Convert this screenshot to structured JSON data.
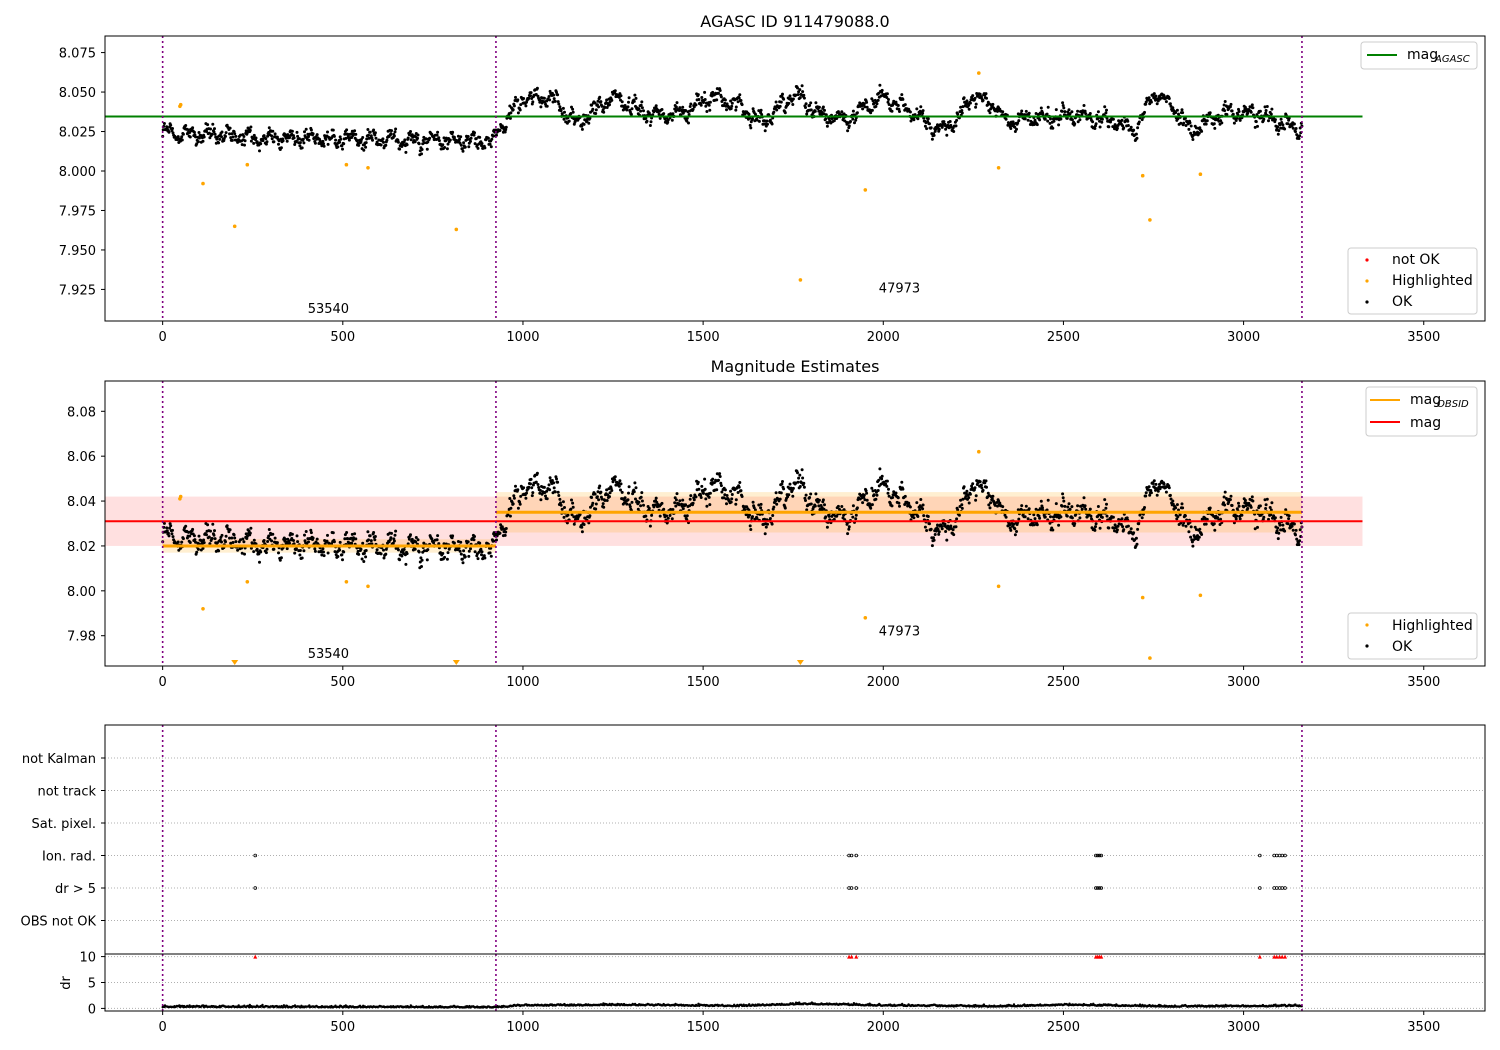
{
  "figure": {
    "title_top": "AGASC ID 911479088.0",
    "title_mid": "Magnitude Estimates"
  },
  "colors": {
    "ok": "#000000",
    "highlighted": "#ffa500",
    "not_ok": "#ff0000",
    "mag_agasc": "#008000",
    "mag_obsid": "#ffa500",
    "mag": "#ff0000",
    "obs_boundary": "#800080",
    "grid": "#b0b0b0"
  },
  "legends": {
    "top_line_label": "mag",
    "top_line_sub": "AGASC",
    "top_points": [
      "not OK",
      "Highlighted",
      "OK"
    ],
    "mid_line_labels": [
      {
        "label": "mag",
        "sub": "OBSID"
      },
      {
        "label": "mag",
        "sub": ""
      }
    ],
    "mid_points": [
      "Highlighted",
      "OK"
    ]
  },
  "chart_data": [
    {
      "type": "scatter",
      "title": "AGASC ID 911479088.0",
      "xlim": [
        -160,
        3670
      ],
      "ylim": [
        7.905,
        8.0855
      ],
      "x_ticks": [
        0,
        500,
        1000,
        1500,
        2000,
        2500,
        3000,
        3500
      ],
      "y_ticks": [
        7.925,
        7.95,
        7.975,
        8.0,
        8.025,
        8.05,
        8.075
      ],
      "y_tick_labels": [
        "7.925",
        "7.950",
        "7.975",
        "8.000",
        "8.025",
        "8.050",
        "8.075"
      ],
      "mag_agasc": 8.0345,
      "mag_agasc_x_range": [
        -160,
        3330
      ],
      "obs_boundaries": [
        0,
        925,
        3162
      ],
      "obsid_labels": [
        {
          "text": "53540",
          "x": 460,
          "y": 7.91
        },
        {
          "text": "47973",
          "x": 2045,
          "y": 7.923
        }
      ],
      "highlighted_points": [
        [
          48,
          8.041
        ],
        [
          50,
          8.042
        ],
        [
          112,
          7.992
        ],
        [
          200,
          7.965
        ],
        [
          235,
          8.004
        ],
        [
          510,
          8.004
        ],
        [
          570,
          8.002
        ],
        [
          815,
          7.963
        ],
        [
          1770,
          7.931
        ],
        [
          1950,
          7.988
        ],
        [
          2265,
          8.062
        ],
        [
          2320,
          8.002
        ],
        [
          2720,
          7.997
        ],
        [
          2740,
          7.969
        ],
        [
          2880,
          7.998
        ]
      ],
      "ok_segments": [
        {
          "x": [
            0,
            925
          ],
          "trend": [
            [
              0,
              8.024
            ],
            [
              300,
              8.021
            ],
            [
              600,
              8.02
            ],
            [
              925,
              8.019
            ]
          ],
          "scatter": 0.006
        },
        {
          "x": [
            925,
            3162
          ],
          "trend": [
            [
              925,
              8.024
            ],
            [
              1000,
              8.046
            ],
            [
              1080,
              8.046
            ],
            [
              1150,
              8.03
            ],
            [
              1250,
              8.047
            ],
            [
              1350,
              8.036
            ],
            [
              1420,
              8.035
            ],
            [
              1530,
              8.047
            ],
            [
              1600,
              8.042
            ],
            [
              1660,
              8.03
            ],
            [
              1760,
              8.05
            ],
            [
              1820,
              8.036
            ],
            [
              1900,
              8.033
            ],
            [
              2000,
              8.047
            ],
            [
              2060,
              8.04
            ],
            [
              2150,
              8.026
            ],
            [
              2200,
              8.03
            ],
            [
              2250,
              8.048
            ],
            [
              2310,
              8.042
            ],
            [
              2340,
              8.03
            ],
            [
              2420,
              8.034
            ],
            [
              2520,
              8.035
            ],
            [
              2640,
              8.032
            ],
            [
              2700,
              8.024
            ],
            [
              2750,
              8.05
            ],
            [
              2800,
              8.042
            ],
            [
              2850,
              8.025
            ],
            [
              2950,
              8.037
            ],
            [
              3050,
              8.036
            ],
            [
              3162,
              8.026
            ]
          ],
          "scatter": 0.006
        }
      ]
    },
    {
      "type": "scatter",
      "title": "Magnitude Estimates",
      "xlim": [
        -160,
        3670
      ],
      "ylim": [
        7.9665,
        8.0935
      ],
      "x_ticks": [
        0,
        500,
        1000,
        1500,
        2000,
        2500,
        3000,
        3500
      ],
      "y_ticks": [
        7.98,
        8.0,
        8.02,
        8.04,
        8.06,
        8.08
      ],
      "y_tick_labels": [
        "7.98",
        "8.00",
        "8.02",
        "8.04",
        "8.06",
        "8.08"
      ],
      "mag": 8.031,
      "mag_band": [
        8.02,
        8.042
      ],
      "mag_x_range": [
        -160,
        3330
      ],
      "mag_obsid": [
        {
          "x": [
            0,
            925
          ],
          "value": 8.02,
          "band": [
            8.017,
            8.023
          ]
        },
        {
          "x": [
            925,
            3162
          ],
          "value": 8.035,
          "band": [
            8.026,
            8.044
          ]
        }
      ],
      "obs_boundaries": [
        0,
        925,
        3162
      ],
      "obsid_labels": [
        {
          "text": "53540",
          "x": 460,
          "y": 7.97
        },
        {
          "text": "47973",
          "x": 2045,
          "y": 7.98
        }
      ],
      "highlighted_points": [
        [
          48,
          8.041
        ],
        [
          50,
          8.042
        ],
        [
          112,
          7.992
        ],
        [
          235,
          8.004
        ],
        [
          510,
          8.004
        ],
        [
          570,
          8.002
        ],
        [
          1950,
          7.988
        ],
        [
          2265,
          8.062
        ],
        [
          2320,
          8.002
        ],
        [
          2720,
          7.997
        ],
        [
          2740,
          7.97
        ],
        [
          2880,
          7.998
        ]
      ],
      "highlighted_offscale": [
        200,
        815,
        1770
      ],
      "ok_segments_ref": "same as first chart"
    },
    {
      "type": "scatter",
      "title": "",
      "xlim": [
        -160,
        3670
      ],
      "categories": [
        "not Kalman",
        "not track",
        "Sat. pixel.",
        "Ion. rad.",
        "dr > 5",
        "OBS not OK"
      ],
      "flag_points": {
        "Ion. rad.": [
          257,
          1905,
          1912,
          1925,
          2590,
          2595,
          2600,
          2605,
          3045,
          3085,
          3092,
          3100,
          3107,
          3115
        ],
        "dr > 5": [
          257,
          1905,
          1912,
          1925,
          2590,
          2595,
          2600,
          2605,
          3045,
          3085,
          3092,
          3100,
          3107,
          3115
        ]
      },
      "obs_boundaries": [
        0,
        925,
        3162
      ]
    },
    {
      "type": "line",
      "ylabel": "dr",
      "xlim": [
        -160,
        3670
      ],
      "ylim": [
        -0.5,
        10.5
      ],
      "x_ticks": [
        0,
        500,
        1000,
        1500,
        2000,
        2500,
        3000,
        3500
      ],
      "y_ticks": [
        0,
        5,
        10
      ],
      "y_tick_labels": [
        "0",
        "5",
        "10"
      ],
      "dr_baseline": [
        [
          0,
          0.5
        ],
        [
          925,
          0.3
        ],
        [
          1000,
          1.0
        ],
        [
          1300,
          1.2
        ],
        [
          1600,
          0.8
        ],
        [
          1780,
          1.6
        ],
        [
          2000,
          1.0
        ],
        [
          2300,
          0.6
        ],
        [
          2500,
          1.2
        ],
        [
          2800,
          0.6
        ],
        [
          3162,
          0.8
        ]
      ],
      "dr_outliers_red": [
        257,
        1905,
        1912,
        1925,
        2590,
        2595,
        2600,
        2605,
        3045,
        3085,
        3092,
        3100,
        3107,
        3115
      ],
      "dr_outlier_value": 10,
      "obs_boundaries": [
        0,
        925,
        3162
      ]
    }
  ]
}
